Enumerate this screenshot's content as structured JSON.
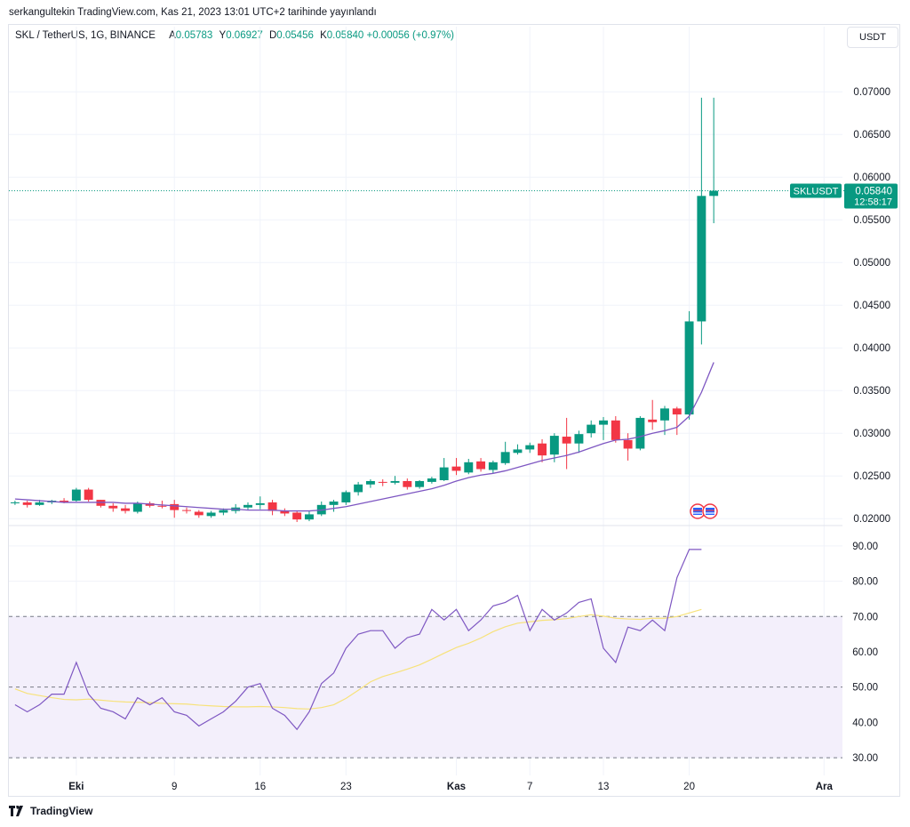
{
  "header": {
    "published_by": "serkangultekin TradingView.com, Kas 21, 2023 13:01 UTC+2 tarihinde yayınlandı"
  },
  "legend": {
    "symbol": "SKL / TetherUS, 1G, BINANCE",
    "open_label": "A",
    "open": "0.05783",
    "high_label": "Y",
    "high": "0.06927",
    "low_label": "D",
    "low": "0.05456",
    "close_label": "K",
    "close": "0.05840",
    "change": "+0.00056 (+0.97%)"
  },
  "unit_button": "USDT",
  "price_tag": {
    "symbol": "SKLUSDT",
    "price": "0.05840",
    "countdown": "12:58:17"
  },
  "footer": {
    "brand": "TradingView"
  },
  "colors": {
    "up": "#089981",
    "down": "#f23645",
    "ma": "#7e57c2",
    "rsi": "#7e57c2",
    "rsi_ma": "#f7e27a",
    "band_fill": "#f3effb",
    "grid": "#f0f3fa"
  },
  "chart_data": [
    {
      "type": "candlestick",
      "title": "",
      "ylim": [
        0.0195,
        0.0745
      ],
      "y_ticks": [
        "0.07000",
        "0.06500",
        "0.06000",
        "0.05500",
        "0.05000",
        "0.04500",
        "0.04000",
        "0.03500",
        "0.03000",
        "0.02500",
        "0.02000"
      ],
      "x_ticks": [
        {
          "label": "Eki",
          "index": 5
        },
        {
          "label": "9",
          "index": 13
        },
        {
          "label": "16",
          "index": 20
        },
        {
          "label": "23",
          "index": 27
        },
        {
          "label": "Kas",
          "index": 36
        },
        {
          "label": "7",
          "index": 42
        },
        {
          "label": "13",
          "index": 48
        },
        {
          "label": "20",
          "index": 55
        },
        {
          "label": "Ara",
          "index": 66
        }
      ],
      "first_index": -0.5,
      "last_index": 67.5,
      "candles": [
        {
          "o": 0.0218,
          "h": 0.0221,
          "l": 0.0216,
          "c": 0.0219
        },
        {
          "o": 0.0219,
          "h": 0.0221,
          "l": 0.0213,
          "c": 0.0216
        },
        {
          "o": 0.0216,
          "h": 0.0222,
          "l": 0.0215,
          "c": 0.0219
        },
        {
          "o": 0.0219,
          "h": 0.0222,
          "l": 0.0217,
          "c": 0.0221
        },
        {
          "o": 0.0221,
          "h": 0.0224,
          "l": 0.0218,
          "c": 0.0219
        },
        {
          "o": 0.0221,
          "h": 0.0236,
          "l": 0.022,
          "c": 0.0234
        },
        {
          "o": 0.0234,
          "h": 0.0236,
          "l": 0.022,
          "c": 0.0222
        },
        {
          "o": 0.0222,
          "h": 0.0222,
          "l": 0.0213,
          "c": 0.0215
        },
        {
          "o": 0.0215,
          "h": 0.0218,
          "l": 0.0208,
          "c": 0.0212
        },
        {
          "o": 0.0212,
          "h": 0.0216,
          "l": 0.0206,
          "c": 0.0209
        },
        {
          "o": 0.0208,
          "h": 0.022,
          "l": 0.0206,
          "c": 0.0218
        },
        {
          "o": 0.0218,
          "h": 0.022,
          "l": 0.0213,
          "c": 0.0215
        },
        {
          "o": 0.0215,
          "h": 0.0221,
          "l": 0.0212,
          "c": 0.0214
        },
        {
          "o": 0.0217,
          "h": 0.0222,
          "l": 0.0201,
          "c": 0.021
        },
        {
          "o": 0.021,
          "h": 0.0213,
          "l": 0.0206,
          "c": 0.0209
        },
        {
          "o": 0.0208,
          "h": 0.021,
          "l": 0.0201,
          "c": 0.0204
        },
        {
          "o": 0.0203,
          "h": 0.0209,
          "l": 0.0201,
          "c": 0.0207
        },
        {
          "o": 0.0207,
          "h": 0.0212,
          "l": 0.0204,
          "c": 0.021
        },
        {
          "o": 0.0209,
          "h": 0.0217,
          "l": 0.0206,
          "c": 0.0213
        },
        {
          "o": 0.0213,
          "h": 0.0219,
          "l": 0.021,
          "c": 0.0216
        },
        {
          "o": 0.0216,
          "h": 0.0226,
          "l": 0.0211,
          "c": 0.0218
        },
        {
          "o": 0.0219,
          "h": 0.0222,
          "l": 0.0204,
          "c": 0.0209
        },
        {
          "o": 0.0209,
          "h": 0.0212,
          "l": 0.0203,
          "c": 0.0206
        },
        {
          "o": 0.0207,
          "h": 0.0209,
          "l": 0.0196,
          "c": 0.0199
        },
        {
          "o": 0.0199,
          "h": 0.0209,
          "l": 0.0197,
          "c": 0.0205
        },
        {
          "o": 0.0205,
          "h": 0.022,
          "l": 0.0203,
          "c": 0.0216
        },
        {
          "o": 0.0216,
          "h": 0.0222,
          "l": 0.0208,
          "c": 0.022
        },
        {
          "o": 0.0219,
          "h": 0.0233,
          "l": 0.0216,
          "c": 0.0231
        },
        {
          "o": 0.0231,
          "h": 0.0243,
          "l": 0.0227,
          "c": 0.024
        },
        {
          "o": 0.024,
          "h": 0.0246,
          "l": 0.0236,
          "c": 0.0244
        },
        {
          "o": 0.0243,
          "h": 0.0246,
          "l": 0.0238,
          "c": 0.0242
        },
        {
          "o": 0.0242,
          "h": 0.025,
          "l": 0.024,
          "c": 0.0244
        },
        {
          "o": 0.0244,
          "h": 0.0247,
          "l": 0.0234,
          "c": 0.0237
        },
        {
          "o": 0.0237,
          "h": 0.0245,
          "l": 0.0235,
          "c": 0.0244
        },
        {
          "o": 0.0243,
          "h": 0.0249,
          "l": 0.0241,
          "c": 0.0247
        },
        {
          "o": 0.0245,
          "h": 0.0271,
          "l": 0.0244,
          "c": 0.026
        },
        {
          "o": 0.0261,
          "h": 0.0271,
          "l": 0.0251,
          "c": 0.0256
        },
        {
          "o": 0.0254,
          "h": 0.027,
          "l": 0.0252,
          "c": 0.0266
        },
        {
          "o": 0.0267,
          "h": 0.0271,
          "l": 0.0255,
          "c": 0.0258
        },
        {
          "o": 0.0257,
          "h": 0.0268,
          "l": 0.0253,
          "c": 0.0266
        },
        {
          "o": 0.0265,
          "h": 0.029,
          "l": 0.0263,
          "c": 0.0278
        },
        {
          "o": 0.0277,
          "h": 0.0287,
          "l": 0.0275,
          "c": 0.0281
        },
        {
          "o": 0.0281,
          "h": 0.0289,
          "l": 0.0277,
          "c": 0.0286
        },
        {
          "o": 0.0288,
          "h": 0.0293,
          "l": 0.0266,
          "c": 0.0274
        },
        {
          "o": 0.0275,
          "h": 0.03,
          "l": 0.0266,
          "c": 0.0297
        },
        {
          "o": 0.0296,
          "h": 0.0318,
          "l": 0.0258,
          "c": 0.0288
        },
        {
          "o": 0.0288,
          "h": 0.0303,
          "l": 0.0277,
          "c": 0.0299
        },
        {
          "o": 0.03,
          "h": 0.0315,
          "l": 0.0295,
          "c": 0.031
        },
        {
          "o": 0.031,
          "h": 0.0319,
          "l": 0.0292,
          "c": 0.0315
        },
        {
          "o": 0.0315,
          "h": 0.032,
          "l": 0.0289,
          "c": 0.0292
        },
        {
          "o": 0.0292,
          "h": 0.03,
          "l": 0.0268,
          "c": 0.0282
        },
        {
          "o": 0.0282,
          "h": 0.032,
          "l": 0.028,
          "c": 0.0318
        },
        {
          "o": 0.0316,
          "h": 0.0339,
          "l": 0.0304,
          "c": 0.0313
        },
        {
          "o": 0.0315,
          "h": 0.0332,
          "l": 0.0298,
          "c": 0.0329
        },
        {
          "o": 0.0329,
          "h": 0.0331,
          "l": 0.0298,
          "c": 0.0322
        },
        {
          "o": 0.0322,
          "h": 0.0443,
          "l": 0.0316,
          "c": 0.0431
        },
        {
          "o": 0.0431,
          "h": 0.0693,
          "l": 0.0404,
          "c": 0.0578
        },
        {
          "o": 0.0578,
          "h": 0.0693,
          "l": 0.0546,
          "c": 0.0584
        }
      ],
      "ma_series": {
        "values": [
          0.0223,
          0.0222,
          0.0221,
          0.022,
          0.0219,
          0.0219,
          0.0219,
          0.0219,
          0.0219,
          0.0218,
          0.0218,
          0.0217,
          0.0216,
          0.0215,
          0.0214,
          0.0213,
          0.0212,
          0.0211,
          0.0211,
          0.021,
          0.021,
          0.021,
          0.0209,
          0.0209,
          0.0209,
          0.021,
          0.0212,
          0.0214,
          0.0217,
          0.022,
          0.0223,
          0.0226,
          0.0229,
          0.0232,
          0.0235,
          0.0239,
          0.0244,
          0.0248,
          0.0251,
          0.0253,
          0.0256,
          0.026,
          0.0264,
          0.0268,
          0.0271,
          0.0274,
          0.0278,
          0.0283,
          0.0288,
          0.0292,
          0.0293,
          0.0296,
          0.03,
          0.0303,
          0.0307,
          0.032,
          0.0348,
          0.0383
        ]
      },
      "current_price": 0.0584
    },
    {
      "type": "line",
      "title": "",
      "ylim": [
        27.5,
        93.5
      ],
      "y_ticks": [
        "90.00",
        "80.00",
        "70.00",
        "60.00",
        "50.00",
        "40.00",
        "30.00"
      ],
      "bands": {
        "upper": 70,
        "middle": 50,
        "lower": 30
      },
      "series": [
        {
          "name": "",
          "values": [
            45,
            43,
            45,
            48,
            48,
            57,
            48,
            44,
            43,
            41,
            47,
            45,
            47,
            43,
            42,
            39,
            41,
            43,
            46,
            50,
            51,
            44,
            42,
            38,
            43,
            51,
            54,
            61,
            65,
            66,
            66,
            61,
            64,
            65,
            72,
            69,
            72,
            66,
            69,
            73,
            74,
            76,
            66,
            72,
            69,
            71,
            74,
            75,
            61,
            57,
            67,
            66,
            69,
            66,
            81,
            89,
            89
          ]
        },
        {
          "name": "",
          "values": [
            49.5,
            48.2,
            47.6,
            47.0,
            46.5,
            46.4,
            46.6,
            46.3,
            46.0,
            45.8,
            45.7,
            45.6,
            45.4,
            45.3,
            45.2,
            44.9,
            44.7,
            44.5,
            44.4,
            44.4,
            44.5,
            44.4,
            44.2,
            43.9,
            43.8,
            44.2,
            45.0,
            46.8,
            49.1,
            51.5,
            53.0,
            54.0,
            55.1,
            56.3,
            57.9,
            59.6,
            61.2,
            62.4,
            63.9,
            65.7,
            67.1,
            68.1,
            68.5,
            68.9,
            69.1,
            69.4,
            70.0,
            70.5,
            70.1,
            69.5,
            69.3,
            69.2,
            69.5,
            69.5,
            70.0,
            71.0,
            72.0
          ]
        }
      ]
    }
  ]
}
